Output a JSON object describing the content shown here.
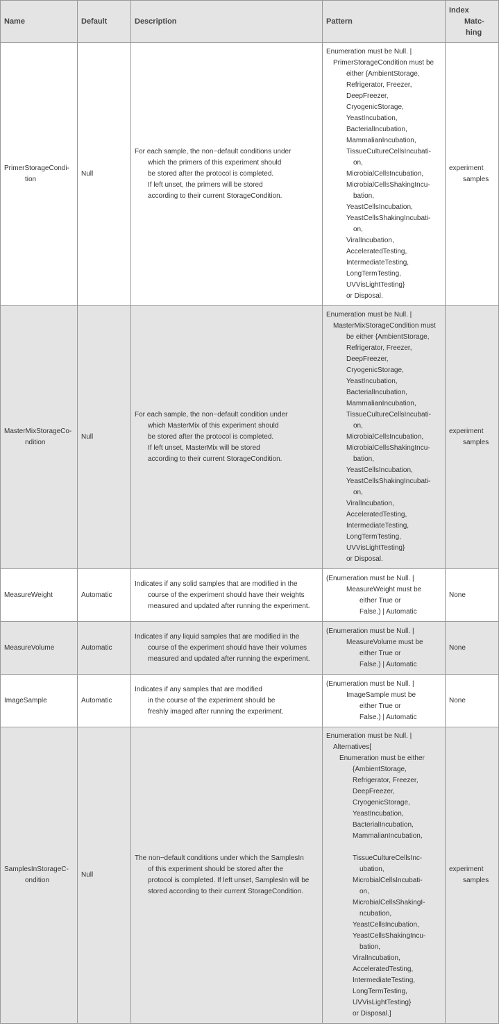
{
  "headers": [
    "Name",
    "Default",
    "Description",
    "Pattern",
    [
      "Index",
      "Matc-",
      "hing"
    ]
  ],
  "rows": [
    {
      "name": [
        "PrimerStorageCondi-",
        "tion"
      ],
      "default": "Null",
      "description": [
        "For each sample, the non−default conditions under",
        "which the primers of this experiment should",
        "be stored after the protocol is completed.",
        "If left unset, the primers will be stored",
        "according to their current StorageCondition."
      ],
      "pattern": [
        "Enumeration must be Null. |",
        "PrimerStorageCondition must be",
        "either {AmbientStorage,",
        "Refrigerator, Freezer,",
        "DeepFreezer,",
        "CryogenicStorage,",
        "YeastIncubation,",
        "BacterialIncubation,",
        "MammalianIncubation,",
        "TissueCultureCellsIncubati-",
        "on,",
        "MicrobialCellsIncubation,",
        "MicrobialCellsShakingIncu-",
        "bation,",
        "YeastCellsIncubation,",
        "YeastCellsShakingIncubati-",
        "on,",
        "ViralIncubation,",
        "AcceleratedTesting,",
        "IntermediateTesting,",
        "LongTermTesting,",
        "UVVisLightTesting}",
        "or Disposal."
      ],
      "index": [
        "experiment",
        "samples"
      ]
    },
    {
      "name": [
        "MasterMixStorageCo-",
        "ndition"
      ],
      "default": "Null",
      "description": [
        "For each sample, the non−default condition under",
        "which MasterMix of this experiment should",
        "be stored after the protocol is completed.",
        "If left unset, MasterMix will be stored",
        "according to their current StorageCondition."
      ],
      "pattern": [
        "Enumeration must be Null. |",
        "MasterMixStorageCondition must",
        "be either {AmbientStorage,",
        "Refrigerator, Freezer,",
        "DeepFreezer,",
        "CryogenicStorage,",
        "YeastIncubation,",
        "BacterialIncubation,",
        "MammalianIncubation,",
        "TissueCultureCellsIncubati-",
        "on,",
        "MicrobialCellsIncubation,",
        "MicrobialCellsShakingIncu-",
        "bation,",
        "YeastCellsIncubation,",
        "YeastCellsShakingIncubati-",
        "on,",
        "ViralIncubation,",
        "AcceleratedTesting,",
        "IntermediateTesting,",
        "LongTermTesting,",
        "UVVisLightTesting}",
        "or Disposal."
      ],
      "index": [
        "experiment",
        "samples"
      ]
    },
    {
      "name": [
        "MeasureWeight"
      ],
      "default": "Automatic",
      "description": [
        "Indicates if any solid samples that are modified in the",
        "course of the experiment should have their weights",
        "measured and updated after running the experiment."
      ],
      "pattern": [
        "(Enumeration must be Null. |",
        "MeasureWeight must be",
        "either True or",
        "False.) | Automatic"
      ],
      "index": [
        "None"
      ]
    },
    {
      "name": [
        "MeasureVolume"
      ],
      "default": "Automatic",
      "description": [
        "Indicates if any liquid samples that are modified in the",
        "course of the experiment should have their volumes",
        "measured and updated after running the experiment."
      ],
      "pattern": [
        "(Enumeration must be Null. |",
        "MeasureVolume must be",
        "either True or",
        "False.) | Automatic"
      ],
      "index": [
        "None"
      ]
    },
    {
      "name": [
        "ImageSample"
      ],
      "default": "Automatic",
      "description": [
        "Indicates if any samples that are modified",
        "in the course of the experiment should be",
        "freshly imaged after running the experiment."
      ],
      "pattern": [
        "(Enumeration must be Null. |",
        "ImageSample must be",
        "either True or",
        "False.) | Automatic"
      ],
      "index": [
        "None"
      ]
    },
    {
      "name": [
        "SamplesInStorageC-",
        "ondition"
      ],
      "default": "Null",
      "description": [
        "The non−default conditions under which the SamplesIn",
        "of this experiment should be stored after the",
        "protocol is completed. If left unset, SamplesIn will be",
        "stored according to their current StorageCondition."
      ],
      "pattern": [
        "Enumeration must be Null. |",
        "Alternatives[",
        "Enumeration must be either",
        "{AmbientStorage,",
        "Refrigerator, Freezer,",
        "DeepFreezer,",
        "CryogenicStorage,",
        "YeastIncubation,",
        "BacterialIncubation,",
        "MammalianIncubation,",
        "",
        "TissueCultureCellsInc-",
        "ubation,",
        "MicrobialCellsIncubati-",
        "on,",
        "MicrobialCellsShakingI-",
        "ncubation,",
        "YeastCellsIncubation,",
        "YeastCellsShakingIncu-",
        "bation,",
        "ViralIncubation,",
        "AcceleratedTesting,",
        "IntermediateTesting,",
        "LongTermTesting,",
        "UVVisLightTesting}",
        "or Disposal.]"
      ],
      "index": [
        "experiment",
        "samples"
      ]
    }
  ]
}
